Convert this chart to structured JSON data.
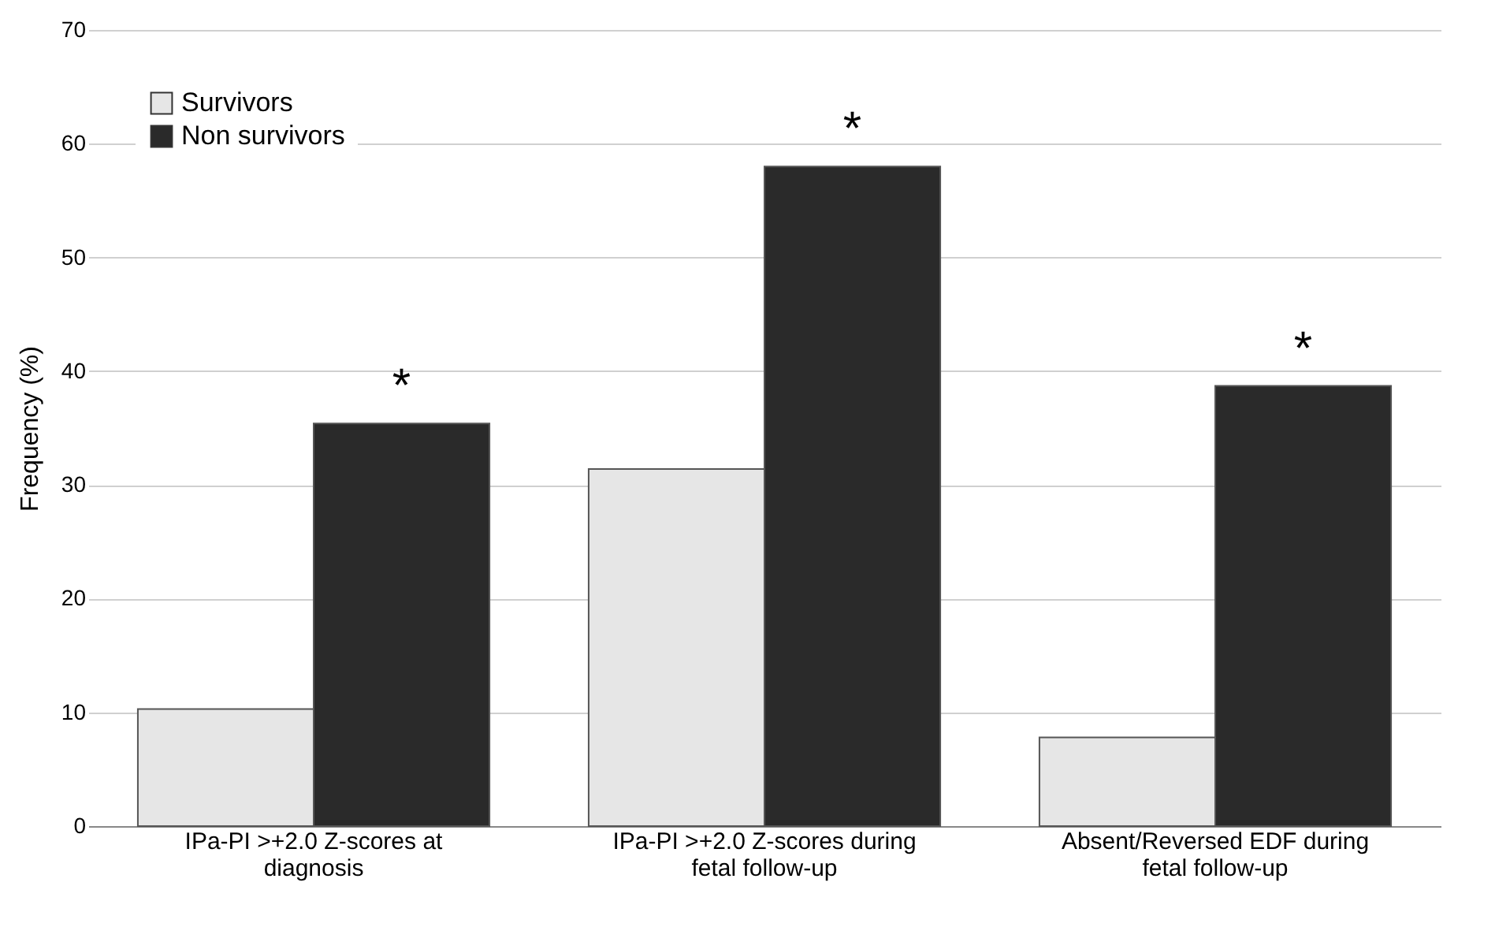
{
  "chart_data": {
    "type": "bar",
    "ylabel": "Frequency  (%)",
    "categories": [
      "IPa-PI >+2.0 Z-scores at diagnosis",
      "IPa-PI >+2.0 Z-scores during fetal follow-up",
      "Absent/Reversed EDF during fetal follow-up"
    ],
    "series": [
      {
        "name": "Survivors",
        "color": "#e6e6e6",
        "values": [
          10.3,
          31.4,
          7.8
        ]
      },
      {
        "name": "Non survivors",
        "color": "#2a2a2a",
        "values": [
          35.4,
          58.0,
          38.7
        ]
      }
    ],
    "ylim": [
      0,
      70
    ],
    "yticks": [
      0,
      10,
      20,
      30,
      40,
      50,
      60,
      70
    ],
    "grid": "y",
    "legend": "top left",
    "annotations": [
      {
        "text": "*",
        "x": "IPa-PI >+2.0 Z-scores at diagnosis",
        "y": 35.4
      },
      {
        "text": "*",
        "x": "IPa-PI >+2.0 Z-scores during fetal follow-up",
        "y": 58.0
      },
      {
        "text": "*",
        "x": "Absent/Reversed EDF during fetal follow-up",
        "y": 38.7
      }
    ]
  }
}
